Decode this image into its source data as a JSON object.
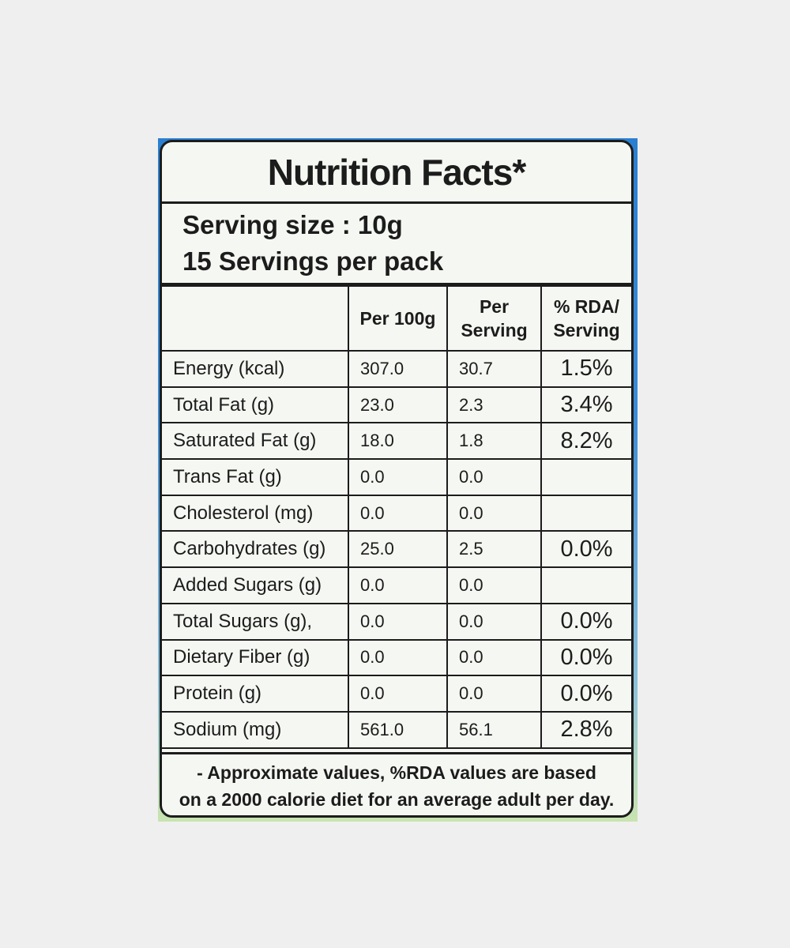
{
  "label": {
    "title": "Nutrition Facts*",
    "serving_size": "Serving size : 10g",
    "servings_per_pack": "15 Servings per pack",
    "headers": [
      "",
      "Per 100g",
      "Per Serving",
      "% RDA/ Serving"
    ],
    "rows": [
      {
        "nutrient": "Energy (kcal)",
        "per100": "307.0",
        "perServing": "30.7",
        "rda": "1.5%"
      },
      {
        "nutrient": "Total Fat (g)",
        "per100": "23.0",
        "perServing": "2.3",
        "rda": "3.4%"
      },
      {
        "nutrient": "Saturated Fat (g)",
        "per100": "18.0",
        "perServing": "1.8",
        "rda": "8.2%"
      },
      {
        "nutrient": "Trans Fat (g)",
        "per100": "0.0",
        "perServing": "0.0",
        "rda": ""
      },
      {
        "nutrient": "Cholesterol (mg)",
        "per100": "0.0",
        "perServing": "0.0",
        "rda": ""
      },
      {
        "nutrient": "Carbohydrates (g)",
        "per100": "25.0",
        "perServing": "2.5",
        "rda": "0.0%"
      },
      {
        "nutrient": "Added Sugars (g)",
        "per100": "0.0",
        "perServing": "0.0",
        "rda": ""
      },
      {
        "nutrient": "Total Sugars (g),",
        "per100": "0.0",
        "perServing": "0.0",
        "rda": "0.0%"
      },
      {
        "nutrient": "Dietary Fiber (g)",
        "per100": "0.0",
        "perServing": "0.0",
        "rda": "0.0%"
      },
      {
        "nutrient": "Protein (g)",
        "per100": "0.0",
        "perServing": "0.0",
        "rda": "0.0%"
      },
      {
        "nutrient": "Sodium (mg)",
        "per100": "561.0",
        "perServing": "56.1",
        "rda": "2.8%"
      }
    ],
    "footnote_line1": "- Approximate values, %RDA values are based",
    "footnote_line2": "on a 2000 calorie diet for an average adult per day."
  },
  "colors": {
    "panel_background": "#f5f8f2",
    "border": "#1c1c1c",
    "backing_blue": "#2a7fd0",
    "page_background": "#efefef"
  }
}
